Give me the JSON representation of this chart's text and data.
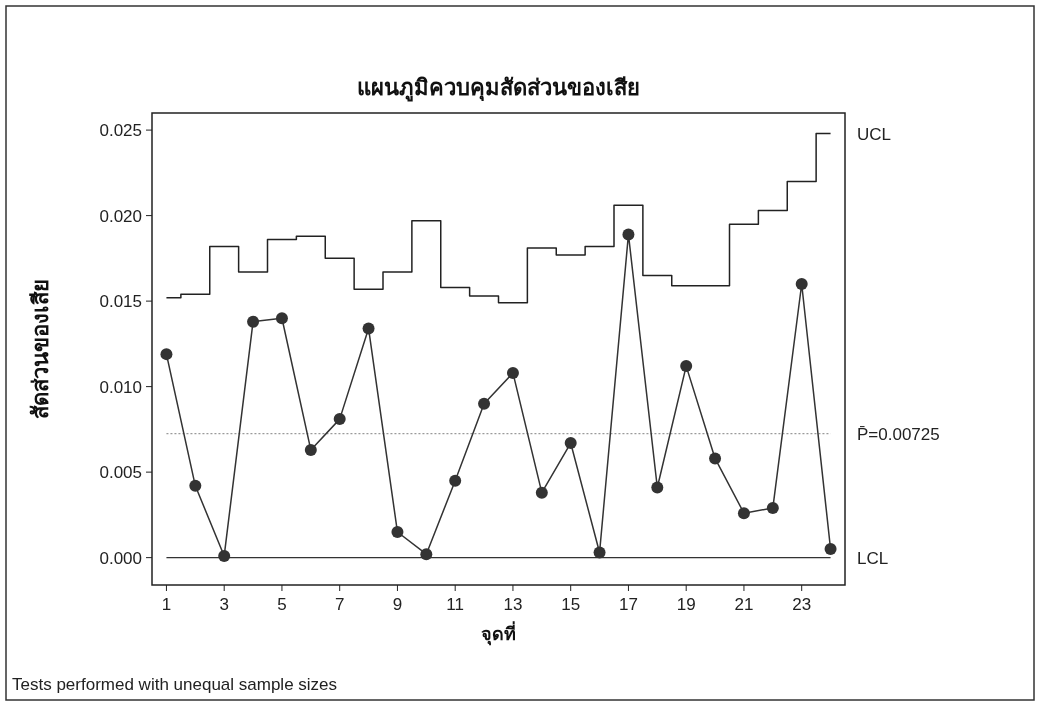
{
  "chart_data": {
    "type": "line",
    "title": "แผนภูมิควบคุมสัดส่วนของเสีย",
    "xlabel": "จุดที่",
    "ylabel": "สัดส่วนของเสีย",
    "x": [
      1,
      2,
      3,
      4,
      5,
      6,
      7,
      8,
      9,
      10,
      11,
      12,
      13,
      14,
      15,
      16,
      17,
      18,
      19,
      20,
      21,
      22,
      23,
      24
    ],
    "xlim": [
      0.5,
      24.5
    ],
    "xticks": [
      1,
      3,
      5,
      7,
      9,
      11,
      13,
      15,
      17,
      19,
      21,
      23
    ],
    "ylim": [
      -0.0016,
      0.026
    ],
    "yticks": [
      {
        "value": 0,
        "label": "0.000"
      },
      {
        "value": 0.005,
        "label": "0.005"
      },
      {
        "value": 0.01,
        "label": "0.010"
      },
      {
        "value": 0.015,
        "label": "0.015"
      },
      {
        "value": 0.02,
        "label": "0.020"
      },
      {
        "value": 0.025,
        "label": "0.025"
      }
    ],
    "series": [
      {
        "color": "#333333",
        "marker": "circle",
        "values": [
          0.0119,
          0.0042,
          0.0001,
          0.0138,
          0.014,
          0.0063,
          0.0081,
          0.0134,
          0.0015,
          0.0002,
          0.0045,
          0.009,
          0.0108,
          0.0038,
          0.0067,
          0.0003,
          0.0189,
          0.0041,
          0.0112,
          0.0058,
          0.0026,
          0.0029,
          0.016,
          0.0005
        ]
      },
      {
        "name": "UCL",
        "type": "step",
        "color": "#222222",
        "marker": "none",
        "values": [
          0.0152,
          0.0154,
          0.0182,
          0.0167,
          0.0186,
          0.0188,
          0.0175,
          0.0157,
          0.0167,
          0.0197,
          0.0158,
          0.0153,
          0.0149,
          0.0181,
          0.0177,
          0.0182,
          0.0206,
          0.0165,
          0.0159,
          0.0159,
          0.0195,
          0.0203,
          0.022,
          0.0248
        ]
      }
    ],
    "ref_lines": [
      {
        "axis": "y",
        "value": 0.00725,
        "label": "P̄=0.00725",
        "color": "#9a9a9a",
        "line_style": "dotted"
      },
      {
        "axis": "y",
        "value": 0,
        "label": "LCL",
        "color": "#333333"
      }
    ],
    "annotations": [
      "Tests performed with unequal sample sizes"
    ]
  }
}
